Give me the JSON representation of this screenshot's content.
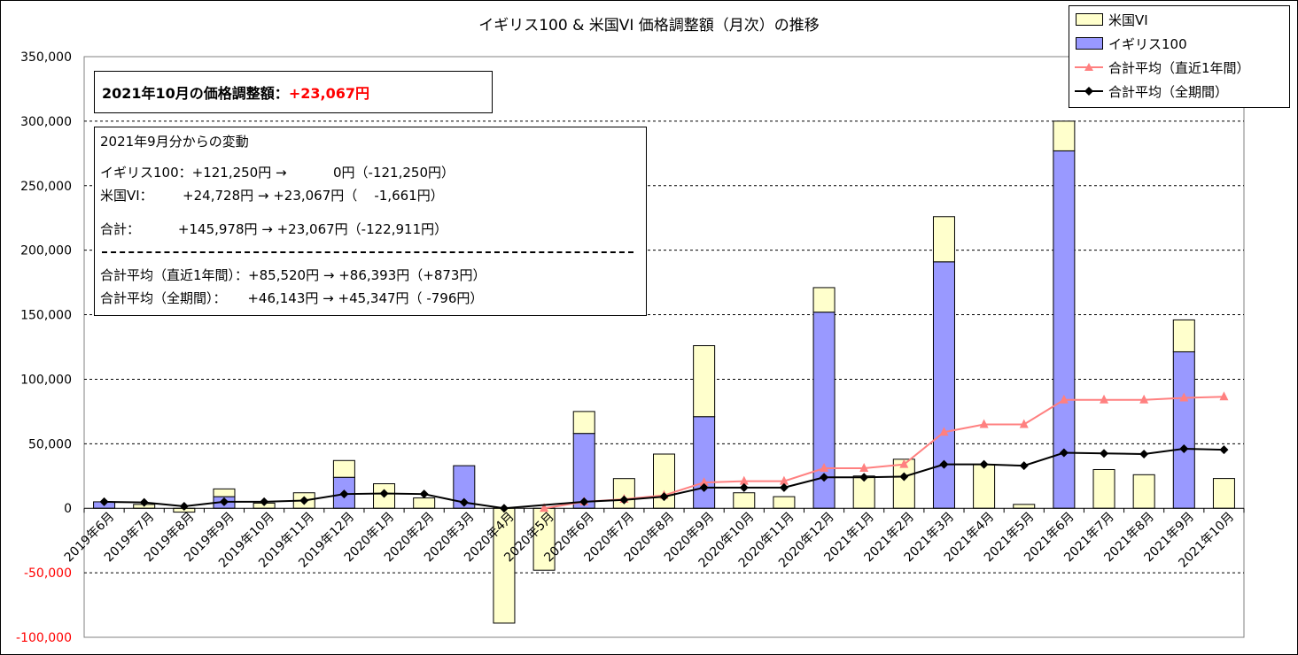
{
  "chart_data": {
    "type": "bar",
    "title": "イギリス100 & 米国VI 価格調整額（月次）の推移",
    "categories": [
      "2019年6月",
      "2019年7月",
      "2019年8月",
      "2019年9月",
      "2019年10月",
      "2019年11月",
      "2019年12月",
      "2020年1月",
      "2020年2月",
      "2020年3月",
      "2020年4月",
      "2020年5月",
      "2020年6月",
      "2020年7月",
      "2020年8月",
      "2020年9月",
      "2020年10月",
      "2020年11月",
      "2020年12月",
      "2021年1月",
      "2021年2月",
      "2021年3月",
      "2021年4月",
      "2021年5月",
      "2021年6月",
      "2021年7月",
      "2021年8月",
      "2021年9月",
      "2021年10月"
    ],
    "ylim": [
      -100000,
      350000
    ],
    "yticks": [
      -100000,
      -50000,
      0,
      50000,
      100000,
      150000,
      200000,
      250000,
      300000,
      350000
    ],
    "ytick_labels": [
      "-100,000",
      "-50,000",
      "0",
      "50,000",
      "100,000",
      "150,000",
      "200,000",
      "250,000",
      "300,000",
      "350,000"
    ],
    "stacked": true,
    "series": [
      {
        "name": "イギリス100",
        "kind": "bar",
        "color": "#9999ff",
        "values": [
          5000,
          0,
          0,
          9000,
          0,
          0,
          24000,
          0,
          0,
          33000,
          0,
          0,
          58000,
          0,
          0,
          71000,
          0,
          0,
          152000,
          0,
          0,
          191000,
          0,
          0,
          277000,
          0,
          0,
          121250,
          0
        ]
      },
      {
        "name": "米国VI",
        "kind": "bar",
        "color": "#ffffcc",
        "values": [
          0,
          3000,
          -3000,
          6000,
          4000,
          12000,
          13000,
          19000,
          8000,
          0,
          -89000,
          -48000,
          17000,
          23000,
          42000,
          55000,
          12000,
          9000,
          19000,
          25000,
          38000,
          35000,
          34000,
          3000,
          23000,
          30000,
          26000,
          24728,
          23067
        ]
      },
      {
        "name": "合計平均（直近1年間）",
        "kind": "line",
        "color": "#ff8080",
        "marker": "triangle",
        "values": [
          null,
          null,
          null,
          null,
          null,
          null,
          null,
          null,
          null,
          null,
          null,
          0,
          5000,
          7000,
          10000,
          20000,
          21000,
          21000,
          31000,
          31000,
          34000,
          59000,
          65000,
          65000,
          84000,
          84000,
          84000,
          85520,
          86393
        ]
      },
      {
        "name": "合計平均（全期間）",
        "kind": "line",
        "color": "#000000",
        "marker": "diamond",
        "values": [
          5000,
          4500,
          1500,
          5000,
          5000,
          6000,
          11000,
          11500,
          11000,
          4500,
          0,
          null,
          5000,
          6500,
          9000,
          16000,
          16000,
          16000,
          24000,
          24000,
          24500,
          34000,
          34000,
          33000,
          43000,
          42500,
          42000,
          46143,
          45347
        ]
      }
    ]
  },
  "legend": {
    "items": [
      {
        "label": "米国VI",
        "color": "#ffffcc",
        "kind": "bar"
      },
      {
        "label": "イギリス100",
        "color": "#9999ff",
        "kind": "bar"
      },
      {
        "label": "合計平均（直近1年間）",
        "color": "#ff8080",
        "kind": "line"
      },
      {
        "label": "合計平均（全期間）",
        "color": "#000000",
        "kind": "line"
      }
    ]
  },
  "summary": {
    "headline_prefix": "2021年10月の価格調整額：",
    "headline_value": "+23,067円"
  },
  "changes": {
    "heading": "2021年9月分からの変動",
    "lines": [
      "イギリス100：+121,250円 →           0円（-121,250円）",
      "米国VI：       +24,728円 → +23,067円（    -1,661円）",
      "合計：         +145,978円 → +23,067円（-122,911円）",
      "合計平均（直近1年間）：+85,520円 → +86,393円（+873円）",
      "合計平均（全期間）：     +46,143円 → +45,347円（ -796円）"
    ]
  },
  "colors": {
    "negative_label": "#ff0000",
    "grid": "#000000"
  }
}
